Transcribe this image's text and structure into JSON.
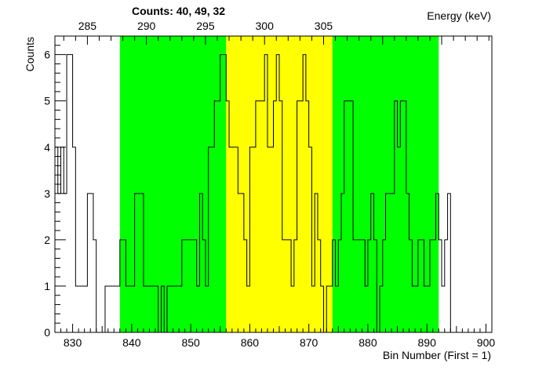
{
  "chart_data": {
    "type": "step-histogram",
    "counts_label": "Counts:   40,   49,   32",
    "xlabel": "Bin Number (First = 1)",
    "ylabel": "Counts",
    "top_axis_label": "Energy (keV)",
    "xlim": [
      827,
      901
    ],
    "ylim": [
      0,
      6.4
    ],
    "x_ticks": [
      830,
      840,
      850,
      860,
      870,
      880,
      890,
      900
    ],
    "y_ticks": [
      0,
      1,
      2,
      3,
      4,
      5,
      6
    ],
    "top_ticks": [
      {
        "label": "285",
        "bin": 832.5
      },
      {
        "label": "290",
        "bin": 842.5
      },
      {
        "label": "295",
        "bin": 852.5
      },
      {
        "label": "300",
        "bin": 862.5
      },
      {
        "label": "305",
        "bin": 872.5
      }
    ],
    "regions": [
      {
        "from": 838,
        "to": 856,
        "color": "#00ff00"
      },
      {
        "from": 856,
        "to": 874,
        "color": "#ffff00"
      },
      {
        "from": 874,
        "to": 892,
        "color": "#00ff00"
      }
    ],
    "bin_start": 827,
    "bin_width": 0.5,
    "values": [
      4,
      3,
      4,
      3,
      6,
      6,
      4,
      1,
      1,
      1,
      1,
      3,
      3,
      2,
      0,
      0,
      0,
      1,
      1,
      1,
      1,
      1,
      2,
      2,
      1,
      1,
      1,
      3,
      3,
      3,
      1,
      1,
      1,
      1,
      1,
      0,
      1,
      0,
      1,
      1,
      1,
      1,
      1,
      2,
      2,
      2,
      2,
      2,
      1,
      3,
      2,
      1,
      4,
      4,
      5,
      5,
      6,
      6,
      5,
      4,
      4,
      4,
      3,
      3,
      2,
      1,
      4,
      4,
      5,
      5,
      5,
      6,
      4,
      4,
      5,
      6,
      5,
      2,
      2,
      2,
      1,
      2,
      5,
      5,
      6,
      5,
      4,
      1,
      3,
      2,
      1,
      0,
      1,
      1,
      2,
      1,
      2,
      3,
      5,
      5,
      5,
      2,
      2,
      2,
      2,
      1,
      2,
      3,
      2,
      0,
      1,
      2,
      3,
      3,
      3,
      5,
      4,
      5,
      5,
      3,
      2,
      1,
      1,
      2,
      2,
      1,
      1,
      2,
      2,
      3,
      2,
      1,
      2,
      3
    ]
  }
}
